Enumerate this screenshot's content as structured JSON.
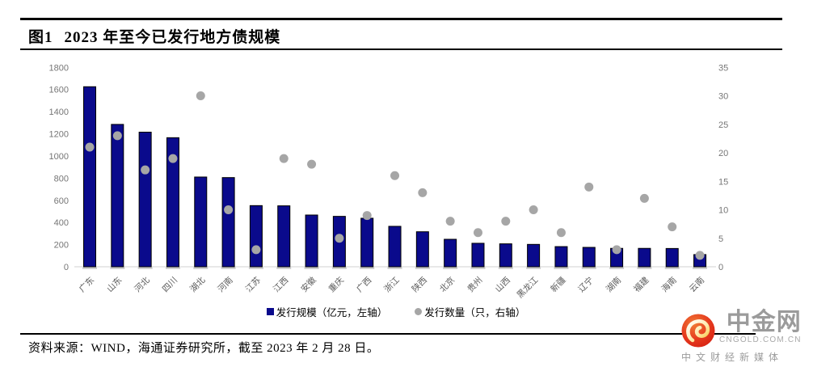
{
  "header": {
    "figure_label": "图1",
    "title": "2023 年至今已发行地方债规模"
  },
  "chart_data": {
    "type": "bar",
    "title": "2023 年至今已发行地方债规模",
    "categories": [
      "广东",
      "山东",
      "河北",
      "四川",
      "湖北",
      "河南",
      "江苏",
      "江西",
      "安徽",
      "重庆",
      "广西",
      "浙江",
      "陕西",
      "北京",
      "贵州",
      "山西",
      "黑龙江",
      "新疆",
      "辽宁",
      "湖南",
      "福建",
      "海南",
      "云南"
    ],
    "series": [
      {
        "name": "发行规模（亿元，左轴）",
        "type": "bar",
        "axis": "left",
        "values": [
          1625,
          1285,
          1215,
          1165,
          810,
          805,
          552,
          550,
          467,
          455,
          438,
          365,
          316,
          248,
          212,
          207,
          202,
          182,
          175,
          166,
          166,
          165,
          110
        ]
      },
      {
        "name": "发行数量（只，右轴）",
        "type": "scatter",
        "axis": "right",
        "values": [
          21,
          23,
          17,
          19,
          30,
          10,
          3,
          19,
          18,
          5,
          9,
          16,
          13,
          8,
          6,
          8,
          10,
          6,
          14,
          3,
          12,
          7,
          2
        ]
      }
    ],
    "left_axis": {
      "min": 0,
      "max": 1800,
      "step": 200
    },
    "right_axis": {
      "min": 0,
      "max": 35,
      "step": 5
    },
    "legend_position": "bottom",
    "grid": "baseline-only",
    "colors": {
      "bar": "#0a0a8c",
      "bar_border": "#000000",
      "bar_shadow": "#c9c9c9",
      "dot": "#a6a6a6",
      "axis_text": "#767676",
      "category_text": "#5a5a5a",
      "baseline": "#d9d9d9"
    }
  },
  "footer": {
    "source": "资料来源：WIND，海通证券研究所，截至 2023 年 2 月 28 日。"
  },
  "watermark": {
    "brand": "中金网",
    "domain": "CNGOLD.COM.CN",
    "tagline": "中文财经新媒体"
  }
}
